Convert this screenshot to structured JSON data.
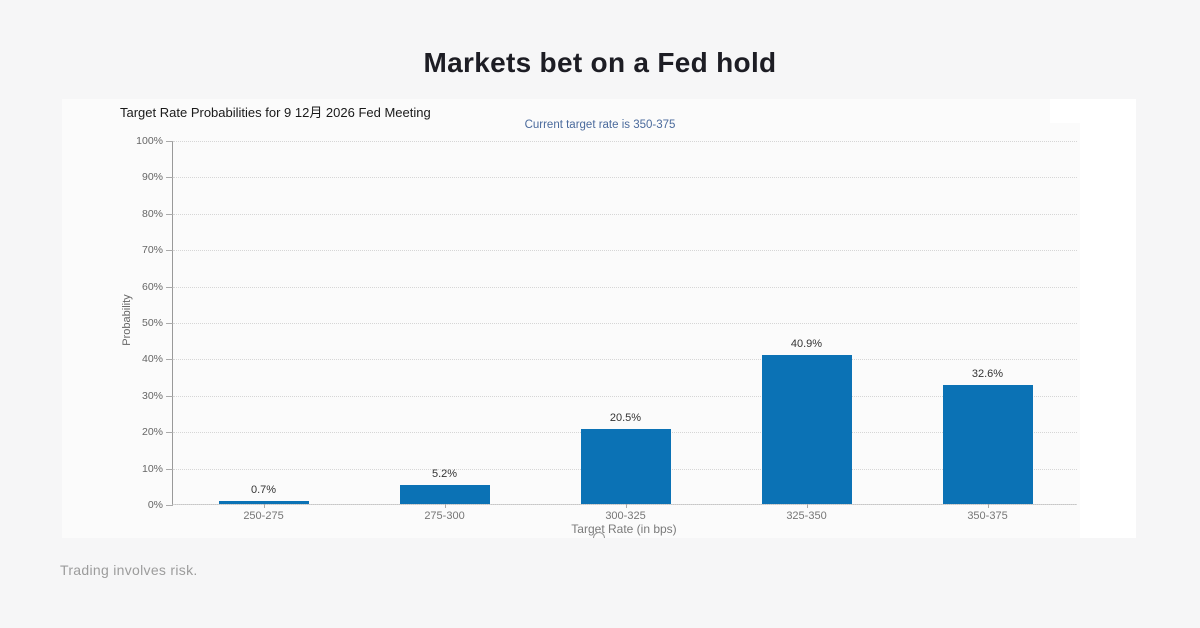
{
  "page": {
    "title": "Markets bet on a Fed hold",
    "disclaimer": "Trading involves risk."
  },
  "chart_data": {
    "type": "bar",
    "title": "Target Rate Probabilities for 9 12月 2026 Fed Meeting",
    "subtitle": "Current target rate is 350-375",
    "categories": [
      "250-275",
      "275-300",
      "300-325",
      "325-350",
      "350-375"
    ],
    "values": [
      0.7,
      5.2,
      20.5,
      40.9,
      32.6
    ],
    "value_labels": [
      "0.7%",
      "5.2%",
      "20.5%",
      "40.9%",
      "32.6%"
    ],
    "xlabel": "Target Rate (in bps)",
    "ylabel": "Probability",
    "ylim": [
      0,
      100
    ],
    "ytick_step": 10,
    "yticks": [
      "0%",
      "10%",
      "20%",
      "30%",
      "40%",
      "50%",
      "60%",
      "70%",
      "80%",
      "90%",
      "100%"
    ],
    "grid": "horizontal-dotted",
    "legend": "none",
    "bar_color": "#0b72b5",
    "subtitle_color": "#4a6a9c",
    "axis_text_color": "#666666"
  }
}
